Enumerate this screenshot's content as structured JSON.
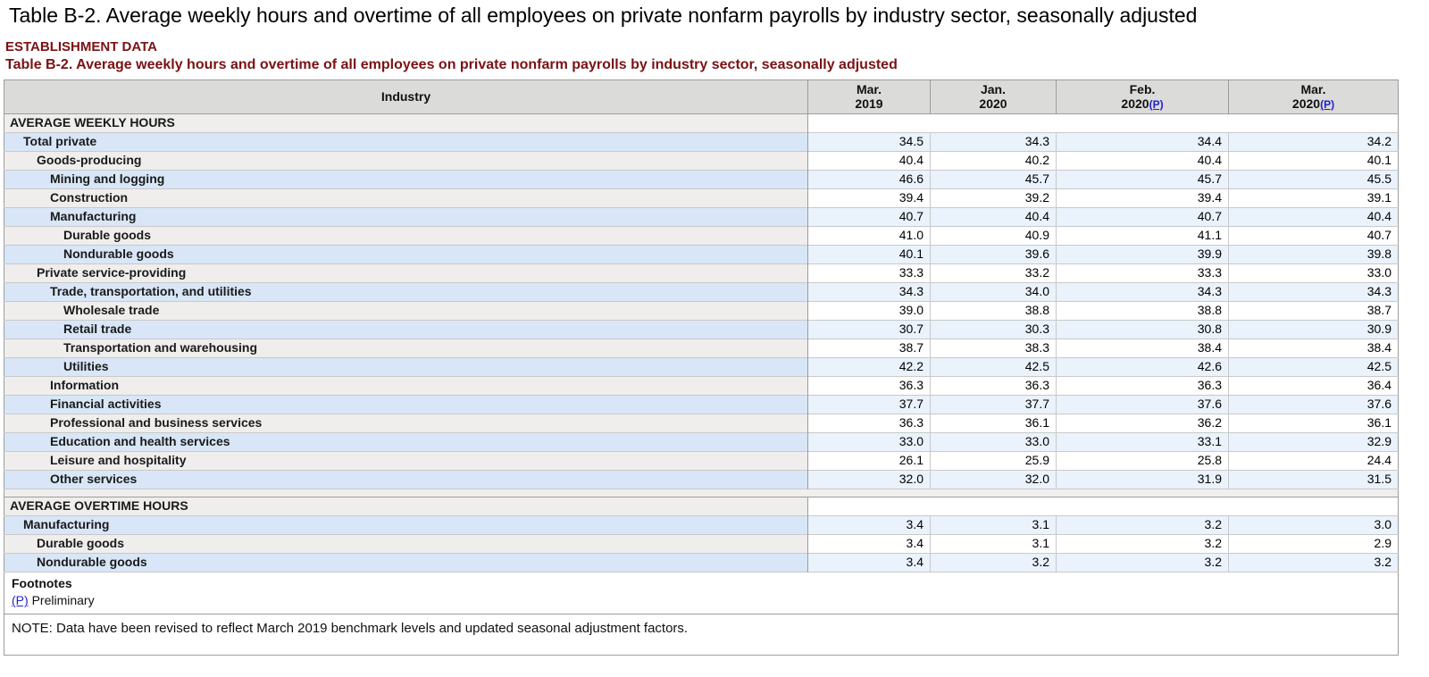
{
  "page": {
    "main_title": "Table B-2. Average weekly hours and overtime of all employees on private nonfarm payrolls by industry sector, seasonally adjusted",
    "establishment_label": "ESTABLISHMENT DATA",
    "table_title": "Table B-2. Average weekly hours and overtime of all employees on private nonfarm payrolls by industry sector, seasonally adjusted"
  },
  "colors": {
    "accent_red": "#7b1113",
    "link_blue": "#2222cc",
    "header_gray": "#dbdbda",
    "row_blue_label": "#d8e6f7",
    "row_blue_data": "#eaf2fb",
    "row_gray_label": "#efeeec",
    "row_gray_data": "#ffffff",
    "border_dark": "#9c9c9c",
    "border_light": "#c9c9c9"
  },
  "table": {
    "industry_header": "Industry",
    "prelim_mark": "(P)",
    "columns": [
      {
        "line1": "Mar.",
        "line2": "2019",
        "prelim": false
      },
      {
        "line1": "Jan.",
        "line2": "2020",
        "prelim": false
      },
      {
        "line1": "Feb.",
        "line2": "2020",
        "prelim": true
      },
      {
        "line1": "Mar.",
        "line2": "2020",
        "prelim": true
      }
    ],
    "sections": [
      {
        "title": "AVERAGE WEEKLY HOURS",
        "rows": [
          {
            "label": "Total private",
            "indent": 1,
            "values": [
              "34.5",
              "34.3",
              "34.4",
              "34.2"
            ]
          },
          {
            "label": "Goods-producing",
            "indent": 2,
            "values": [
              "40.4",
              "40.2",
              "40.4",
              "40.1"
            ]
          },
          {
            "label": "Mining and logging",
            "indent": 3,
            "values": [
              "46.6",
              "45.7",
              "45.7",
              "45.5"
            ]
          },
          {
            "label": "Construction",
            "indent": 3,
            "values": [
              "39.4",
              "39.2",
              "39.4",
              "39.1"
            ]
          },
          {
            "label": "Manufacturing",
            "indent": 3,
            "values": [
              "40.7",
              "40.4",
              "40.7",
              "40.4"
            ]
          },
          {
            "label": "Durable goods",
            "indent": 4,
            "values": [
              "41.0",
              "40.9",
              "41.1",
              "40.7"
            ]
          },
          {
            "label": "Nondurable goods",
            "indent": 4,
            "values": [
              "40.1",
              "39.6",
              "39.9",
              "39.8"
            ]
          },
          {
            "label": "Private service-providing",
            "indent": 2,
            "values": [
              "33.3",
              "33.2",
              "33.3",
              "33.0"
            ]
          },
          {
            "label": "Trade, transportation, and utilities",
            "indent": 3,
            "values": [
              "34.3",
              "34.0",
              "34.3",
              "34.3"
            ]
          },
          {
            "label": "Wholesale trade",
            "indent": 4,
            "values": [
              "39.0",
              "38.8",
              "38.8",
              "38.7"
            ]
          },
          {
            "label": "Retail trade",
            "indent": 4,
            "values": [
              "30.7",
              "30.3",
              "30.8",
              "30.9"
            ]
          },
          {
            "label": "Transportation and warehousing",
            "indent": 4,
            "values": [
              "38.7",
              "38.3",
              "38.4",
              "38.4"
            ]
          },
          {
            "label": "Utilities",
            "indent": 4,
            "values": [
              "42.2",
              "42.5",
              "42.6",
              "42.5"
            ]
          },
          {
            "label": "Information",
            "indent": 3,
            "values": [
              "36.3",
              "36.3",
              "36.3",
              "36.4"
            ]
          },
          {
            "label": "Financial activities",
            "indent": 3,
            "values": [
              "37.7",
              "37.7",
              "37.6",
              "37.6"
            ]
          },
          {
            "label": "Professional and business services",
            "indent": 3,
            "values": [
              "36.3",
              "36.1",
              "36.2",
              "36.1"
            ]
          },
          {
            "label": "Education and health services",
            "indent": 3,
            "values": [
              "33.0",
              "33.0",
              "33.1",
              "32.9"
            ]
          },
          {
            "label": "Leisure and hospitality",
            "indent": 3,
            "values": [
              "26.1",
              "25.9",
              "25.8",
              "24.4"
            ]
          },
          {
            "label": "Other services",
            "indent": 3,
            "values": [
              "32.0",
              "32.0",
              "31.9",
              "31.5"
            ]
          }
        ]
      },
      {
        "title": "AVERAGE OVERTIME HOURS",
        "rows": [
          {
            "label": "Manufacturing",
            "indent": 1,
            "values": [
              "3.4",
              "3.1",
              "3.2",
              "3.0"
            ]
          },
          {
            "label": "Durable goods",
            "indent": 2,
            "values": [
              "3.4",
              "3.1",
              "3.2",
              "2.9"
            ]
          },
          {
            "label": "Nondurable goods",
            "indent": 2,
            "values": [
              "3.4",
              "3.2",
              "3.2",
              "3.2"
            ]
          }
        ]
      }
    ],
    "footnotes": {
      "title": "Footnotes",
      "prelim_link": "(P)",
      "prelim_text": "Preliminary"
    },
    "note": "NOTE: Data have been revised to reflect March 2019 benchmark levels and updated seasonal adjustment factors."
  }
}
